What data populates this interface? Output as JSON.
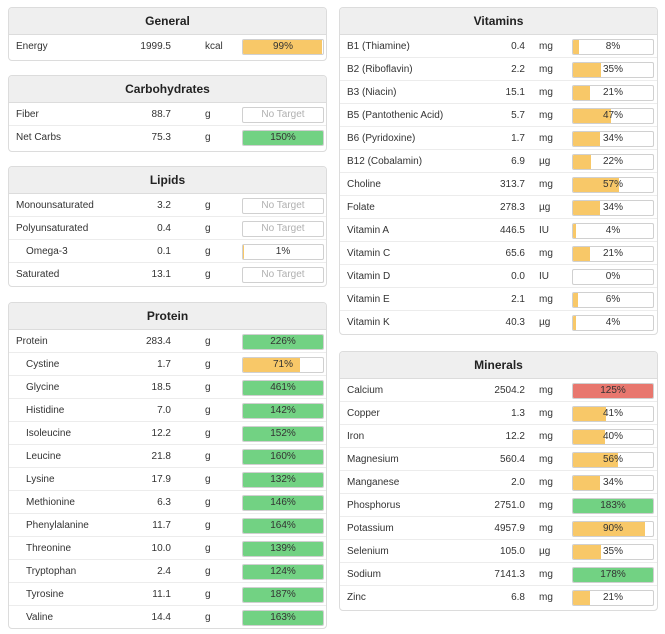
{
  "colors": {
    "orange": "#f8c868",
    "green": "#72d283",
    "red": "#e8776e"
  },
  "panels": {
    "general": {
      "title": "General",
      "rows": [
        {
          "name": "Energy",
          "value": "1999.5",
          "unit": "kcal",
          "pct": "99%",
          "fill": 0.99,
          "color": "orange"
        }
      ]
    },
    "carbs": {
      "title": "Carbohydrates",
      "rows": [
        {
          "name": "Fiber",
          "value": "88.7",
          "unit": "g",
          "pct": "No Target",
          "fill": 0,
          "color": "none"
        },
        {
          "name": "Net Carbs",
          "value": "75.3",
          "unit": "g",
          "pct": "150%",
          "fill": 1,
          "color": "green"
        }
      ]
    },
    "lipids": {
      "title": "Lipids",
      "rows": [
        {
          "name": "Monounsaturated",
          "value": "3.2",
          "unit": "g",
          "pct": "No Target",
          "fill": 0,
          "color": "none"
        },
        {
          "name": "Polyunsaturated",
          "value": "0.4",
          "unit": "g",
          "pct": "No Target",
          "fill": 0,
          "color": "none"
        },
        {
          "name": "Omega-3",
          "value": "0.1",
          "unit": "g",
          "pct": "1%",
          "fill": 0.01,
          "color": "orange",
          "sub": true
        },
        {
          "name": "Saturated",
          "value": "13.1",
          "unit": "g",
          "pct": "No Target",
          "fill": 0,
          "color": "none"
        }
      ]
    },
    "protein": {
      "title": "Protein",
      "rows": [
        {
          "name": "Protein",
          "value": "283.4",
          "unit": "g",
          "pct": "226%",
          "fill": 1,
          "color": "green"
        },
        {
          "name": "Cystine",
          "value": "1.7",
          "unit": "g",
          "pct": "71%",
          "fill": 0.71,
          "color": "orange",
          "sub": true
        },
        {
          "name": "Glycine",
          "value": "18.5",
          "unit": "g",
          "pct": "461%",
          "fill": 1,
          "color": "green",
          "sub": true
        },
        {
          "name": "Histidine",
          "value": "7.0",
          "unit": "g",
          "pct": "142%",
          "fill": 1,
          "color": "green",
          "sub": true
        },
        {
          "name": "Isoleucine",
          "value": "12.2",
          "unit": "g",
          "pct": "152%",
          "fill": 1,
          "color": "green",
          "sub": true
        },
        {
          "name": "Leucine",
          "value": "21.8",
          "unit": "g",
          "pct": "160%",
          "fill": 1,
          "color": "green",
          "sub": true
        },
        {
          "name": "Lysine",
          "value": "17.9",
          "unit": "g",
          "pct": "132%",
          "fill": 1,
          "color": "green",
          "sub": true
        },
        {
          "name": "Methionine",
          "value": "6.3",
          "unit": "g",
          "pct": "146%",
          "fill": 1,
          "color": "green",
          "sub": true
        },
        {
          "name": "Phenylalanine",
          "value": "11.7",
          "unit": "g",
          "pct": "164%",
          "fill": 1,
          "color": "green",
          "sub": true
        },
        {
          "name": "Threonine",
          "value": "10.0",
          "unit": "g",
          "pct": "139%",
          "fill": 1,
          "color": "green",
          "sub": true
        },
        {
          "name": "Tryptophan",
          "value": "2.4",
          "unit": "g",
          "pct": "124%",
          "fill": 1,
          "color": "green",
          "sub": true
        },
        {
          "name": "Tyrosine",
          "value": "11.1",
          "unit": "g",
          "pct": "187%",
          "fill": 1,
          "color": "green",
          "sub": true
        },
        {
          "name": "Valine",
          "value": "14.4",
          "unit": "g",
          "pct": "163%",
          "fill": 1,
          "color": "green",
          "sub": true
        }
      ]
    },
    "vitamins": {
      "title": "Vitamins",
      "rows": [
        {
          "name": "B1 (Thiamine)",
          "value": "0.4",
          "unit": "mg",
          "pct": "8%",
          "fill": 0.08,
          "color": "orange"
        },
        {
          "name": "B2 (Riboflavin)",
          "value": "2.2",
          "unit": "mg",
          "pct": "35%",
          "fill": 0.35,
          "color": "orange"
        },
        {
          "name": "B3 (Niacin)",
          "value": "15.1",
          "unit": "mg",
          "pct": "21%",
          "fill": 0.21,
          "color": "orange"
        },
        {
          "name": "B5 (Pantothenic Acid)",
          "value": "5.7",
          "unit": "mg",
          "pct": "47%",
          "fill": 0.47,
          "color": "orange"
        },
        {
          "name": "B6 (Pyridoxine)",
          "value": "1.7",
          "unit": "mg",
          "pct": "34%",
          "fill": 0.34,
          "color": "orange"
        },
        {
          "name": "B12 (Cobalamin)",
          "value": "6.9",
          "unit": "µg",
          "pct": "22%",
          "fill": 0.22,
          "color": "orange"
        },
        {
          "name": "Choline",
          "value": "313.7",
          "unit": "mg",
          "pct": "57%",
          "fill": 0.57,
          "color": "orange"
        },
        {
          "name": "Folate",
          "value": "278.3",
          "unit": "µg",
          "pct": "34%",
          "fill": 0.34,
          "color": "orange"
        },
        {
          "name": "Vitamin A",
          "value": "446.5",
          "unit": "IU",
          "pct": "4%",
          "fill": 0.04,
          "color": "orange"
        },
        {
          "name": "Vitamin C",
          "value": "65.6",
          "unit": "mg",
          "pct": "21%",
          "fill": 0.21,
          "color": "orange"
        },
        {
          "name": "Vitamin D",
          "value": "0.0",
          "unit": "IU",
          "pct": "0%",
          "fill": 0,
          "color": "orange"
        },
        {
          "name": "Vitamin E",
          "value": "2.1",
          "unit": "mg",
          "pct": "6%",
          "fill": 0.06,
          "color": "orange"
        },
        {
          "name": "Vitamin K",
          "value": "40.3",
          "unit": "µg",
          "pct": "4%",
          "fill": 0.04,
          "color": "orange"
        }
      ]
    },
    "minerals": {
      "title": "Minerals",
      "rows": [
        {
          "name": "Calcium",
          "value": "2504.2",
          "unit": "mg",
          "pct": "125%",
          "fill": 1,
          "color": "red"
        },
        {
          "name": "Copper",
          "value": "1.3",
          "unit": "mg",
          "pct": "41%",
          "fill": 0.41,
          "color": "orange"
        },
        {
          "name": "Iron",
          "value": "12.2",
          "unit": "mg",
          "pct": "40%",
          "fill": 0.4,
          "color": "orange"
        },
        {
          "name": "Magnesium",
          "value": "560.4",
          "unit": "mg",
          "pct": "56%",
          "fill": 0.56,
          "color": "orange"
        },
        {
          "name": "Manganese",
          "value": "2.0",
          "unit": "mg",
          "pct": "34%",
          "fill": 0.34,
          "color": "orange"
        },
        {
          "name": "Phosphorus",
          "value": "2751.0",
          "unit": "mg",
          "pct": "183%",
          "fill": 1,
          "color": "green"
        },
        {
          "name": "Potassium",
          "value": "4957.9",
          "unit": "mg",
          "pct": "90%",
          "fill": 0.9,
          "color": "orange"
        },
        {
          "name": "Selenium",
          "value": "105.0",
          "unit": "µg",
          "pct": "35%",
          "fill": 0.35,
          "color": "orange"
        },
        {
          "name": "Sodium",
          "value": "7141.3",
          "unit": "mg",
          "pct": "178%",
          "fill": 1,
          "color": "green"
        },
        {
          "name": "Zinc",
          "value": "6.8",
          "unit": "mg",
          "pct": "21%",
          "fill": 0.21,
          "color": "orange"
        }
      ]
    }
  }
}
